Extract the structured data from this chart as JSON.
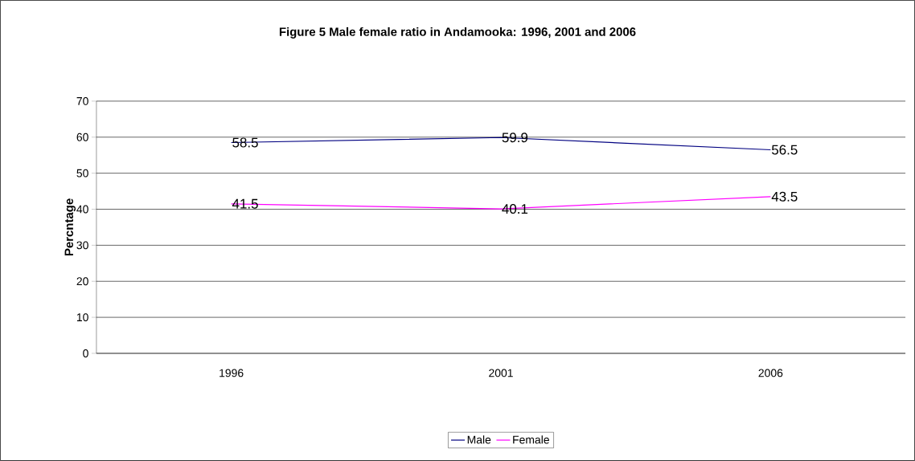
{
  "chart_data": {
    "type": "line",
    "title": "Figure 5 Male female ratio in Andamooka: 1996, 2001 and 2006",
    "ylabel": "Percntage",
    "categories": [
      "1996",
      "2001",
      "2006"
    ],
    "series": [
      {
        "name": "Male",
        "color": "#000080",
        "values": [
          58.5,
          59.9,
          56.5
        ]
      },
      {
        "name": "Female",
        "color": "#ff00ff",
        "values": [
          41.5,
          40.1,
          43.5
        ]
      }
    ],
    "ylim": [
      0,
      70
    ],
    "yticks": [
      0,
      10,
      20,
      30,
      40,
      50,
      60,
      70
    ],
    "grid": "y",
    "legend": "bottom",
    "data_labels": true
  }
}
